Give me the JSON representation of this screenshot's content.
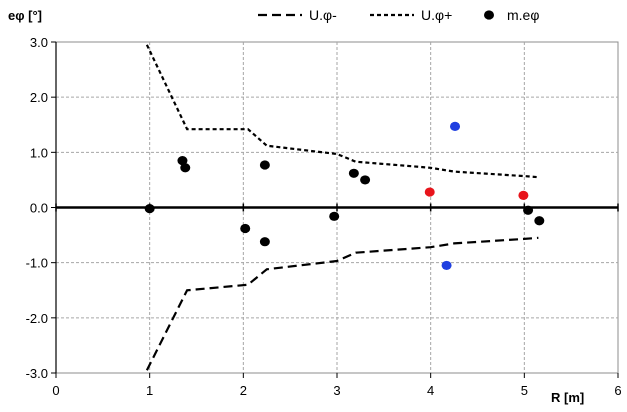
{
  "chart_data": {
    "type": "scatter",
    "xlabel": "R [m]",
    "ylabel": "eφ [°]",
    "xlim": [
      0,
      6
    ],
    "ylim": [
      -3.0,
      3.0
    ],
    "xticks": [
      {
        "v": 0,
        "label": "0"
      },
      {
        "v": 1,
        "label": "1"
      },
      {
        "v": 2,
        "label": "2"
      },
      {
        "v": 3,
        "label": "3"
      },
      {
        "v": 4,
        "label": "4"
      },
      {
        "v": 5,
        "label": "5"
      },
      {
        "v": 6,
        "label": "6"
      }
    ],
    "yticks": [
      {
        "v": 3,
        "label": "3.0"
      },
      {
        "v": 2,
        "label": "2.0"
      },
      {
        "v": 1,
        "label": "1.0"
      },
      {
        "v": 0,
        "label": "0.0"
      },
      {
        "v": -1,
        "label": "-1.0"
      },
      {
        "v": -2,
        "label": "-2.0"
      },
      {
        "v": -3,
        "label": "-3.0"
      }
    ],
    "grid": true,
    "legend_position": "top-right",
    "series": [
      {
        "name": "U.φ-",
        "type": "line",
        "style": "dashed",
        "color": "#000000",
        "x": [
          0.97,
          1.4,
          2.05,
          2.25,
          3.0,
          3.2,
          4.0,
          4.25,
          5.0,
          5.15
        ],
        "y": [
          -2.95,
          -1.5,
          -1.4,
          -1.12,
          -0.97,
          -0.82,
          -0.72,
          -0.65,
          -0.57,
          -0.55
        ]
      },
      {
        "name": "U.φ+",
        "type": "line",
        "style": "dotted",
        "color": "#000000",
        "x": [
          0.97,
          1.4,
          2.05,
          2.25,
          3.0,
          3.2,
          4.0,
          4.25,
          5.0,
          5.15
        ],
        "y": [
          2.95,
          1.42,
          1.42,
          1.12,
          0.97,
          0.83,
          0.72,
          0.65,
          0.57,
          0.55
        ]
      },
      {
        "name": "m.eφ",
        "type": "scatter",
        "color": "#000000",
        "points": [
          {
            "x": 1.0,
            "y": -0.02,
            "color": "#000000"
          },
          {
            "x": 1.35,
            "y": 0.85,
            "color": "#000000"
          },
          {
            "x": 1.38,
            "y": 0.72,
            "color": "#000000"
          },
          {
            "x": 2.02,
            "y": -0.38,
            "color": "#000000"
          },
          {
            "x": 2.23,
            "y": -0.62,
            "color": "#000000"
          },
          {
            "x": 2.23,
            "y": 0.77,
            "color": "#000000"
          },
          {
            "x": 2.97,
            "y": -0.16,
            "color": "#000000"
          },
          {
            "x": 3.18,
            "y": 0.62,
            "color": "#000000"
          },
          {
            "x": 3.3,
            "y": 0.5,
            "color": "#000000"
          },
          {
            "x": 3.99,
            "y": 0.28,
            "color": "#e8141b"
          },
          {
            "x": 4.17,
            "y": -1.05,
            "color": "#1f3fe0"
          },
          {
            "x": 4.26,
            "y": 1.47,
            "color": "#1f3fe0"
          },
          {
            "x": 4.99,
            "y": 0.22,
            "color": "#e8141b"
          },
          {
            "x": 5.04,
            "y": -0.05,
            "color": "#000000"
          },
          {
            "x": 5.16,
            "y": -0.24,
            "color": "#000000"
          }
        ]
      }
    ]
  }
}
